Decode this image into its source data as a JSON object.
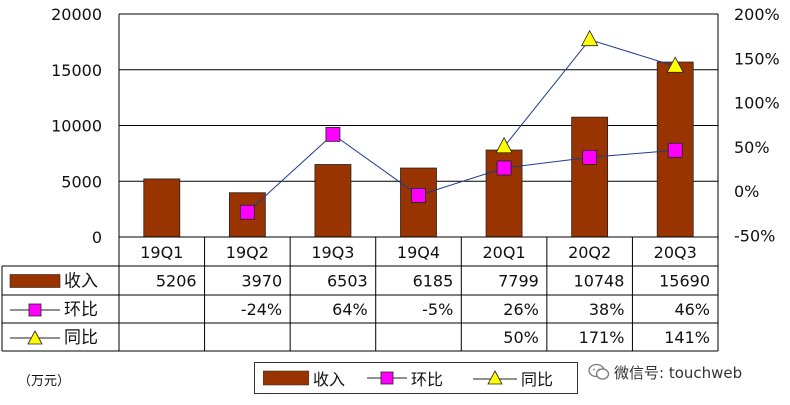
{
  "chart_data": {
    "type": "bar",
    "categories": [
      "19Q1",
      "19Q2",
      "19Q3",
      "19Q4",
      "20Q1",
      "20Q2",
      "20Q3"
    ],
    "series": [
      {
        "name": "收入",
        "kind": "bar",
        "axis": "left",
        "color": "#993300",
        "values": [
          5206,
          3970,
          6503,
          6185,
          7799,
          10748,
          15690
        ],
        "labels": [
          "5206",
          "3970",
          "6503",
          "6185",
          "7799",
          "10748",
          "15690"
        ]
      },
      {
        "name": "环比",
        "kind": "line",
        "axis": "right",
        "color": "#ff00ff",
        "marker": "square",
        "values": [
          null,
          -24,
          64,
          -5,
          26,
          38,
          46
        ],
        "labels": [
          "",
          "-24%",
          "64%",
          "-5%",
          "26%",
          "38%",
          "46%"
        ]
      },
      {
        "name": "同比",
        "kind": "line",
        "axis": "right",
        "color": "#ffff00",
        "marker": "triangle",
        "values": [
          null,
          null,
          null,
          null,
          50,
          171,
          141
        ],
        "labels": [
          "",
          "",
          "",
          "",
          "50%",
          "171%",
          "141%"
        ]
      }
    ],
    "y_left": {
      "min": 0,
      "max": 20000,
      "ticks": [
        "0",
        "5000",
        "10000",
        "15000",
        "20000"
      ]
    },
    "y_right": {
      "min": -50,
      "max": 200,
      "ticks": [
        "-50%",
        "0%",
        "50%",
        "100%",
        "150%",
        "200%"
      ]
    },
    "grid": true,
    "data_table": true,
    "legend_position": "bottom"
  },
  "unit_label": "（万元）",
  "watermark": {
    "text": "微信号: touchweb",
    "icon": "wechat-icon"
  }
}
